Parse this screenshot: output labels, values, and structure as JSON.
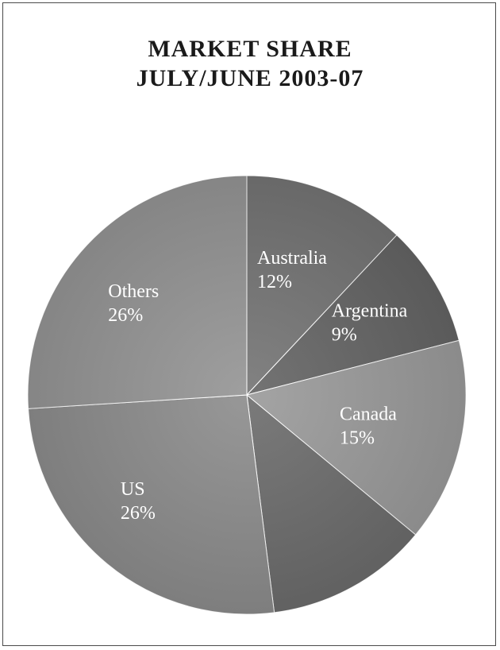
{
  "chart_data": {
    "type": "pie",
    "title": "MARKET SHARE",
    "subtitle": "JULY/JUNE 2003-07",
    "slices": [
      {
        "label": "Australia",
        "value_label": "12%",
        "value": 12,
        "color": "#747474",
        "show_label": true
      },
      {
        "label": "Argentina",
        "value_label": "9%",
        "value": 9,
        "color": "#646464",
        "show_label": true
      },
      {
        "label": "Canada",
        "value_label": "15%",
        "value": 15,
        "color": "#9a9a9a",
        "show_label": true
      },
      {
        "label": "",
        "value_label": "",
        "value": 12,
        "color": "#6c6c6c",
        "show_label": false
      },
      {
        "label": "US",
        "value_label": "26%",
        "value": 26,
        "color": "#8c8c8c",
        "show_label": true
      },
      {
        "label": "Others",
        "value_label": "26%",
        "value": 26,
        "color": "#949494",
        "show_label": true
      }
    ],
    "start_angle_deg": 0,
    "direction": "clockwise",
    "legend": "none"
  }
}
